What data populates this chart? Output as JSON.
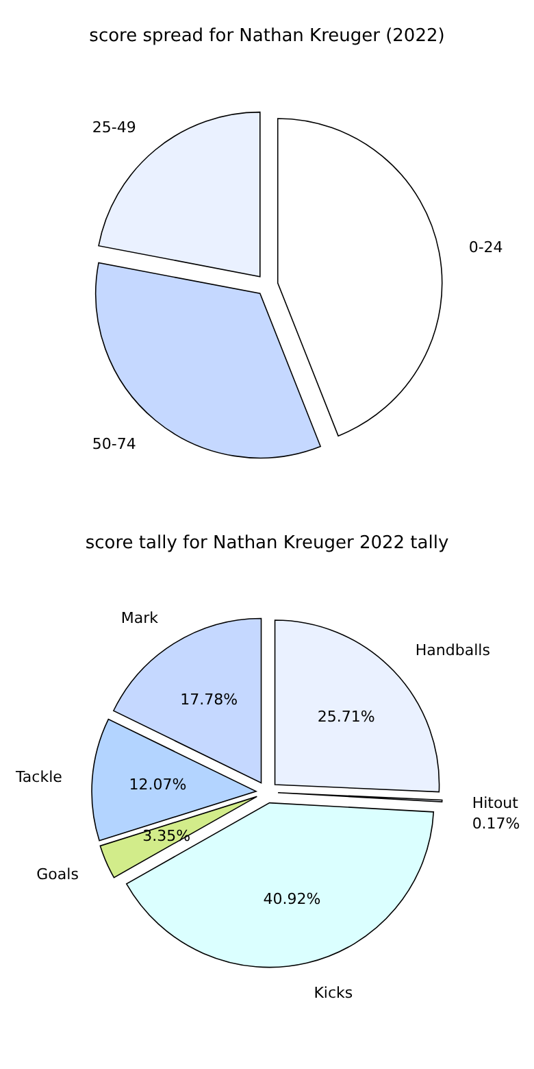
{
  "chart_data": [
    {
      "type": "pie",
      "title": "score spread for Nathan Kreuger (2022)",
      "categories": [
        "0-24",
        "50-74",
        "25-49"
      ],
      "values": [
        44,
        34,
        22
      ],
      "colors": [
        "#ffffff",
        "#c5d8ff",
        "#eaf1ff"
      ]
    },
    {
      "type": "pie",
      "title": "score tally for Nathan Kreuger 2022 tally",
      "categories": [
        "Handballs",
        "Hitout",
        "Kicks",
        "Goals",
        "Tackle",
        "Mark"
      ],
      "values": [
        25.71,
        0.17,
        40.92,
        3.35,
        12.07,
        17.78
      ],
      "colors": [
        "#eaf1ff",
        "#f2f6ff",
        "#dbffff",
        "#d2ec8a",
        "#b3d4ff",
        "#c5d8ff"
      ],
      "value_labels": [
        "25.71%",
        "0.17%",
        "40.92%",
        "3.35%",
        "12.07%",
        "17.78%"
      ]
    }
  ]
}
